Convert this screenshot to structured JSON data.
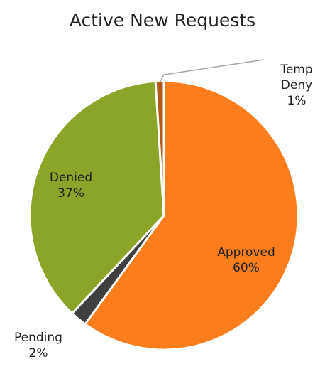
{
  "chart_data": {
    "type": "pie",
    "title": "Active New Requests",
    "categories": [
      "Approved",
      "Pending",
      "Denied",
      "Temp Deny"
    ],
    "values": [
      60,
      2,
      37,
      1
    ],
    "value_labels": [
      "60%",
      "2%",
      "37%",
      "1%"
    ],
    "colors": [
      "#fb7d1b",
      "#3f3f3f",
      "#8aa527",
      "#b4581a"
    ]
  }
}
